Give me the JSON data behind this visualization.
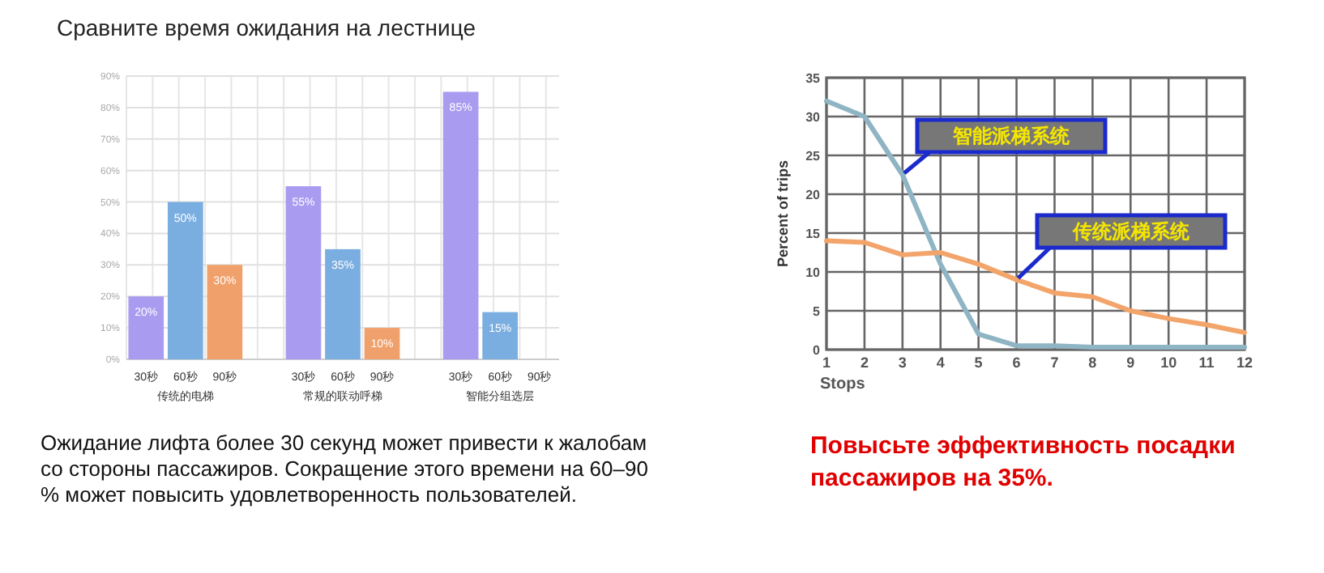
{
  "chart_data": [
    {
      "type": "bar",
      "title": "Сравните время ожидания на лестнице",
      "categories": [
        "30秒",
        "60秒",
        "90秒",
        "30秒",
        "60秒",
        "90秒",
        "30秒",
        "60秒",
        "90秒"
      ],
      "values": [
        20,
        50,
        30,
        55,
        35,
        10,
        85,
        15,
        null
      ],
      "colors": [
        "#a99cf0",
        "#7aaee0",
        "#f0a06a",
        "#a99cf0",
        "#7aaee0",
        "#f0a06a",
        "#a99cf0",
        "#7aaee0",
        null
      ],
      "value_labels": [
        "20%",
        "50%",
        "30%",
        "55%",
        "35%",
        "10%",
        "85%",
        "15%",
        null
      ],
      "ylim": [
        0,
        90
      ],
      "yticks": [
        {
          "value": 0,
          "label": "0%"
        },
        {
          "value": 10,
          "label": "10%"
        },
        {
          "value": 20,
          "label": "20%"
        },
        {
          "value": 30,
          "label": "30%"
        },
        {
          "value": 40,
          "label": "40%"
        },
        {
          "value": 50,
          "label": "50%"
        },
        {
          "value": 60,
          "label": "60%"
        },
        {
          "value": 70,
          "label": "70%"
        },
        {
          "value": 80,
          "label": "80%"
        },
        {
          "value": 90,
          "label": "90%"
        }
      ],
      "grid": true,
      "annotations": [
        "传统的电梯",
        "常规的联动呼梯",
        "智能分组选层",
        "Ожидание лифта более 30 секунд может привести к жалобам со стороны пассажиров. Сокращение этого времени на 60–90 % может повысить удовлетворенность пользователей."
      ]
    },
    {
      "type": "line",
      "xlabel": "Stops",
      "ylabel": "Percent of trips",
      "x": [
        1,
        2,
        3,
        4,
        5,
        6,
        7,
        8,
        9,
        10,
        11,
        12
      ],
      "series": [
        {
          "name": "智能派梯系统",
          "color": "#8fb4c4",
          "values": [
            32,
            30,
            22.5,
            11,
            2,
            0.5,
            0.5,
            0.3,
            0.3,
            0.3,
            0.3,
            0.3
          ]
        },
        {
          "name": "传统派梯系统",
          "color": "#f2a46a",
          "values": [
            14,
            13.8,
            12.2,
            12.5,
            11,
            9,
            7.3,
            6.8,
            5,
            4,
            3.2,
            2.2
          ]
        }
      ],
      "xlim": [
        1,
        12
      ],
      "xticks": [
        1,
        2,
        3,
        4,
        5,
        6,
        7,
        8,
        9,
        10,
        11,
        12
      ],
      "ylim": [
        0,
        35
      ],
      "yticks": [
        0,
        5,
        10,
        15,
        20,
        25,
        30,
        35
      ],
      "grid": true,
      "legend": false,
      "annotations": [
        "Повысьте эффективность посадки пассажиров на 35%."
      ]
    }
  ]
}
